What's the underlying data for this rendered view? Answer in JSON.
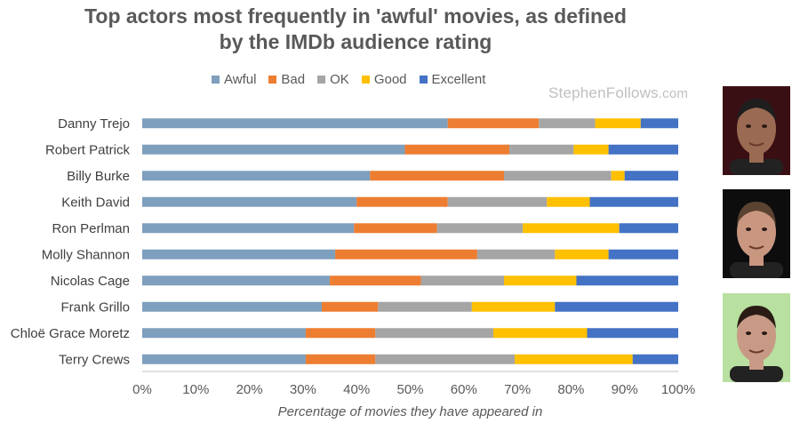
{
  "chart_data": {
    "type": "bar",
    "orientation": "horizontal",
    "stacked": true,
    "title_lines": [
      "Top actors most frequently in 'awful' movies, as defined",
      "by the IMDb audience rating"
    ],
    "xlabel": "Percentage of movies they have appeared in",
    "ylabel": "",
    "xlim": [
      0,
      100
    ],
    "xticks": [
      0,
      10,
      20,
      30,
      40,
      50,
      60,
      70,
      80,
      90,
      100
    ],
    "xtick_suffix": "%",
    "legend_position": "top",
    "categories": [
      "Danny Trejo",
      "Robert Patrick",
      "Billy Burke",
      "Keith David",
      "Ron Perlman",
      "Molly Shannon",
      "Nicolas Cage",
      "Frank Grillo",
      "Chloë Grace Moretz",
      "Terry Crews"
    ],
    "series": [
      {
        "name": "Awful",
        "color": "#7e9fbd",
        "values": [
          57,
          49,
          42.5,
          40,
          39.5,
          36,
          35,
          33.5,
          30.5,
          30.5
        ]
      },
      {
        "name": "Bad",
        "color": "#ed7d31",
        "values": [
          17,
          19.5,
          25,
          17,
          15.5,
          26.5,
          17,
          10.5,
          13,
          13
        ]
      },
      {
        "name": "OK",
        "color": "#a5a5a5",
        "values": [
          10.5,
          12,
          20,
          18.5,
          16,
          14.5,
          15.5,
          17.5,
          22,
          26
        ]
      },
      {
        "name": "Good",
        "color": "#ffc000",
        "values": [
          8.5,
          6.5,
          2.5,
          8,
          18,
          10,
          13.5,
          15.5,
          17.5,
          22
        ]
      },
      {
        "name": "Excellent",
        "color": "#4472c4",
        "values": [
          7,
          13,
          10,
          16.5,
          11,
          13,
          19,
          23,
          17,
          8.5
        ]
      }
    ]
  },
  "watermark": {
    "main": "StephenFollows",
    "suffix": ".com"
  },
  "photos": [
    {
      "name": "Danny Trejo",
      "bg": "#3a0f14",
      "skin": "#9b6a52",
      "hair": "#1e1e1e"
    },
    {
      "name": "Robert Patrick",
      "bg": "#0d0d0d",
      "skin": "#c99680",
      "hair": "#5b4331"
    },
    {
      "name": "Billy Burke",
      "bg": "#b8e0a0",
      "skin": "#c89a86",
      "hair": "#2a1c14"
    }
  ]
}
